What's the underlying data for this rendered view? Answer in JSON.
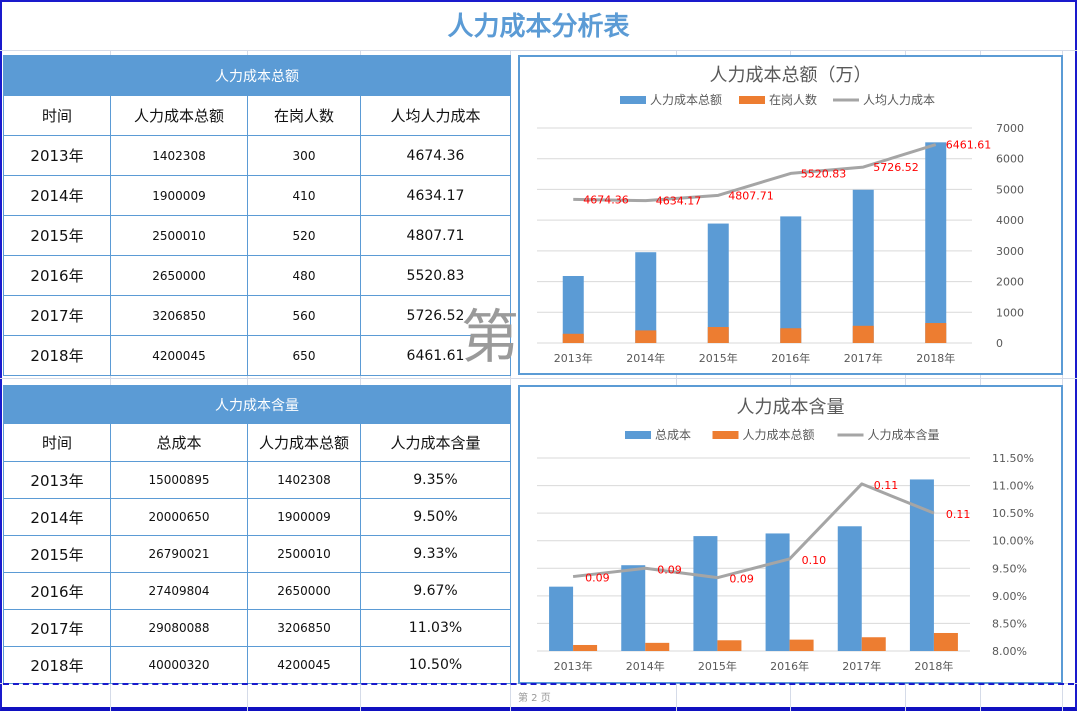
{
  "title": "人力成本分析表",
  "table1": {
    "band": "人力成本总额",
    "headers": [
      "时间",
      "人力成本总额",
      "在岗人数",
      "人均人力成本"
    ],
    "rows": [
      [
        "2013年",
        "1402308",
        "300",
        "4674.36"
      ],
      [
        "2014年",
        "1900009",
        "410",
        "4634.17"
      ],
      [
        "2015年",
        "2500010",
        "520",
        "4807.71"
      ],
      [
        "2016年",
        "2650000",
        "480",
        "5520.83"
      ],
      [
        "2017年",
        "3206850",
        "560",
        "5726.52"
      ],
      [
        "2018年",
        "4200045",
        "650",
        "6461.61"
      ]
    ]
  },
  "table2": {
    "band": "人力成本含量",
    "headers": [
      "时间",
      "总成本",
      "人力成本总额",
      "人力成本含量"
    ],
    "rows": [
      [
        "2013年",
        "15000895",
        "1402308",
        "9.35%"
      ],
      [
        "2014年",
        "20000650",
        "1900009",
        "9.50%"
      ],
      [
        "2015年",
        "26790021",
        "2500010",
        "9.33%"
      ],
      [
        "2016年",
        "27409804",
        "2650000",
        "9.67%"
      ],
      [
        "2017年",
        "29080088",
        "3206850",
        "11.03%"
      ],
      [
        "2018年",
        "40000320",
        "4200045",
        "10.50%"
      ]
    ]
  },
  "watermark": "第",
  "page_label": "第 2 页",
  "colors": {
    "blue": "#5b9bd5",
    "orange": "#ed7d31",
    "gray": "#a5a5a5",
    "label": "#ff0000"
  },
  "chart_data": [
    {
      "type": "bar+line",
      "title": "人力成本总额（万）",
      "categories": [
        "2013年",
        "2014年",
        "2015年",
        "2016年",
        "2017年",
        "2018年"
      ],
      "series": [
        {
          "name": "人力成本总额",
          "type": "bar",
          "axis": "primary-hidden",
          "values": [
            1402308,
            1900009,
            2500010,
            2650000,
            3206850,
            4200045
          ]
        },
        {
          "name": "在岗人数",
          "type": "bar",
          "axis": "secondary",
          "values": [
            300,
            410,
            520,
            480,
            560,
            650
          ]
        },
        {
          "name": "人均人力成本",
          "type": "line",
          "axis": "secondary",
          "values": [
            4674.36,
            4634.17,
            4807.71,
            5520.83,
            5726.52,
            6461.61
          ],
          "data_labels": [
            "4674.36",
            "4634.17",
            "4807.71",
            "5520.83",
            "5726.52",
            "6461.61"
          ]
        }
      ],
      "y_right": {
        "range": [
          0,
          7000
        ],
        "ticks": [
          "0",
          "1000",
          "2000",
          "3000",
          "4000",
          "5000",
          "6000",
          "7000"
        ]
      },
      "y_primary_range": [
        0,
        4500000
      ],
      "bars_overlap": true,
      "legend": "top",
      "grid": true
    },
    {
      "type": "bar+line",
      "title": "人力成本含量",
      "categories": [
        "2013年",
        "2014年",
        "2015年",
        "2016年",
        "2017年",
        "2018年"
      ],
      "series": [
        {
          "name": "总成本",
          "type": "bar",
          "axis": "primary-hidden",
          "values": [
            15000895,
            20000650,
            26790021,
            27409804,
            29080088,
            40000320
          ]
        },
        {
          "name": "人力成本总额",
          "type": "bar",
          "axis": "primary-hidden",
          "values": [
            1402308,
            1900009,
            2500010,
            2650000,
            3206850,
            4200045
          ]
        },
        {
          "name": "人力成本含量",
          "type": "line",
          "axis": "secondary",
          "values": [
            9.35,
            9.5,
            9.33,
            9.67,
            11.03,
            10.5
          ],
          "data_labels": [
            "0.09",
            "0.09",
            "0.09",
            "0.10",
            "0.11",
            "0.11"
          ]
        }
      ],
      "y_right": {
        "range": [
          8.0,
          11.5
        ],
        "ticks": [
          "8.00%",
          "8.50%",
          "9.00%",
          "9.50%",
          "10.00%",
          "10.50%",
          "11.00%",
          "11.50%"
        ]
      },
      "y_primary_range": [
        0,
        45000000
      ],
      "bars_overlap": false,
      "legend": "top",
      "grid": true
    }
  ]
}
